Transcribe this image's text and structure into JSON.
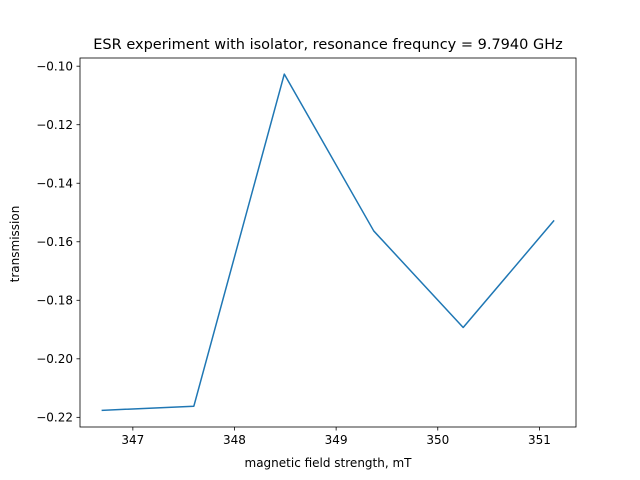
{
  "chart_data": {
    "type": "line",
    "title": "ESR experiment with isolator, resonance frequncy = 9.7940 GHz",
    "xlabel": "magnetic field strength, mT",
    "ylabel": "transmission",
    "xlim": [
      346.48,
      351.36
    ],
    "ylim": [
      -0.2233,
      -0.0972
    ],
    "xticks": [
      347,
      348,
      349,
      350,
      351
    ],
    "xtick_labels": [
      "347",
      "348",
      "349",
      "350",
      "351"
    ],
    "yticks": [
      -0.22,
      -0.2,
      -0.18,
      -0.16,
      -0.14,
      -0.12,
      -0.1
    ],
    "ytick_labels": [
      "−0.22",
      "−0.20",
      "−0.18",
      "−0.16",
      "−0.14",
      "−0.12",
      "−0.10"
    ],
    "grid": false,
    "series": [
      {
        "color": "#1f77b4",
        "x": [
          346.7,
          347.6,
          348.49,
          349.37,
          350.25,
          351.14
        ],
        "y": [
          -0.2176,
          -0.2162,
          -0.1027,
          -0.1563,
          -0.1893,
          -0.1529
        ]
      }
    ]
  }
}
